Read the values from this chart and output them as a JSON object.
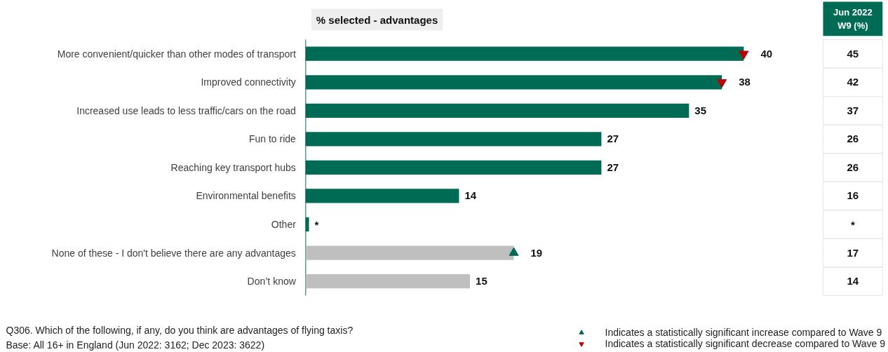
{
  "chart_data": {
    "type": "bar",
    "orientation": "horizontal",
    "title": "% selected - advantages",
    "categories": [
      "More convenient/quicker than other modes of transport",
      "Improved connectivity",
      "Increased use leads to less traffic/cars on the road",
      "Fun to ride",
      "Reaching key transport hubs",
      "Environmental benefits",
      "Other",
      "None of these - I don't believe there are any advantages",
      "Don’t know"
    ],
    "series": [
      {
        "values": [
          40,
          38,
          35,
          27,
          27,
          14,
          0.3,
          19,
          15
        ],
        "colors": [
          "#006b54",
          "#006b54",
          "#006b54",
          "#006b54",
          "#006b54",
          "#006b54",
          "#006b54",
          "#bfbfbf",
          "#bfbfbf"
        ],
        "value_labels": [
          "40",
          "38",
          "35",
          "27",
          "27",
          "14",
          "*",
          "19",
          "15"
        ]
      },
      {
        "type": "scatter",
        "name": "Indicates a statistically significant increase compared to Wave 9",
        "marker": "triangle",
        "color": "#006b54",
        "values": [
          null,
          null,
          null,
          null,
          null,
          null,
          null,
          19,
          null
        ]
      },
      {
        "type": "scatter",
        "name": "Indicates a statistically significant decrease compared to Wave 9",
        "color": "#c00000",
        "values": [
          40,
          38,
          null,
          null,
          null,
          null,
          null,
          null,
          null
        ]
      }
    ],
    "annotations": [
      "Jun 2022\nW9 (%)",
      "45",
      "42",
      "37",
      "26",
      "26",
      "16",
      "*",
      "17",
      "14",
      "Q306. Which of the following, if any, do you think are advantages of flying taxis?",
      "Base: All 16+ in England (Jun 2022: 3162; Dec 2023: 3622)"
    ],
    "legend": "bottom right",
    "tick_labels": "y",
    "grid": false
  }
}
